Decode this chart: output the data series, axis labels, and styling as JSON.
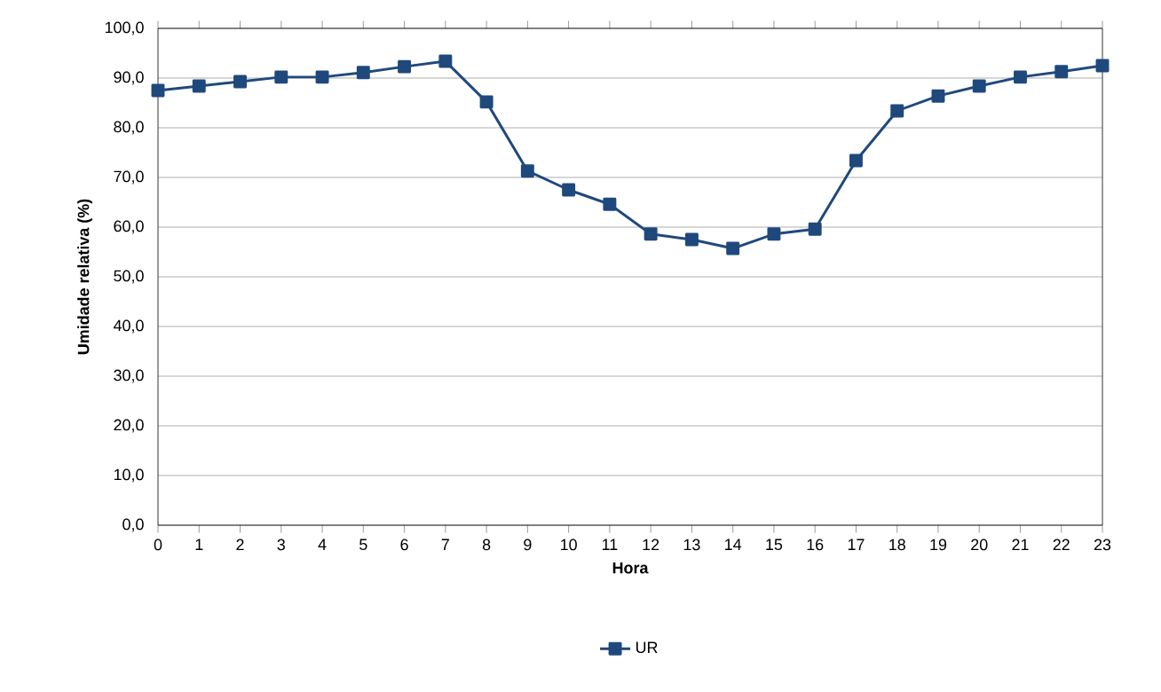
{
  "chart_data": {
    "type": "line",
    "xlabel": "Hora",
    "ylabel": "Umidade relativa (%)",
    "categories": [
      "0",
      "1",
      "2",
      "3",
      "4",
      "5",
      "6",
      "7",
      "8",
      "9",
      "10",
      "11",
      "12",
      "13",
      "14",
      "15",
      "16",
      "17",
      "18",
      "19",
      "20",
      "21",
      "22",
      "23"
    ],
    "series": [
      {
        "name": "UR",
        "color": "#1f497d",
        "values": [
          87.5,
          88.4,
          89.3,
          90.2,
          90.2,
          91.1,
          92.3,
          93.4,
          85.2,
          71.3,
          67.5,
          64.6,
          58.6,
          57.5,
          55.7,
          58.6,
          59.6,
          73.4,
          83.4,
          86.4,
          88.4,
          90.2,
          91.3,
          92.5
        ]
      }
    ],
    "ylim": [
      0,
      100
    ],
    "yticks": [
      {
        "value": 0,
        "label": "0,0"
      },
      {
        "value": 10,
        "label": "10,0"
      },
      {
        "value": 20,
        "label": "20,0"
      },
      {
        "value": 30,
        "label": "30,0"
      },
      {
        "value": 40,
        "label": "40,0"
      },
      {
        "value": 50,
        "label": "50,0"
      },
      {
        "value": 60,
        "label": "60,0"
      },
      {
        "value": 70,
        "label": "70,0"
      },
      {
        "value": 80,
        "label": "80,0"
      },
      {
        "value": 90,
        "label": "90,0"
      },
      {
        "value": 100,
        "label": "100,0"
      }
    ],
    "grid": "y",
    "legend": "bottom",
    "marker": "square",
    "line_style": "solid"
  }
}
